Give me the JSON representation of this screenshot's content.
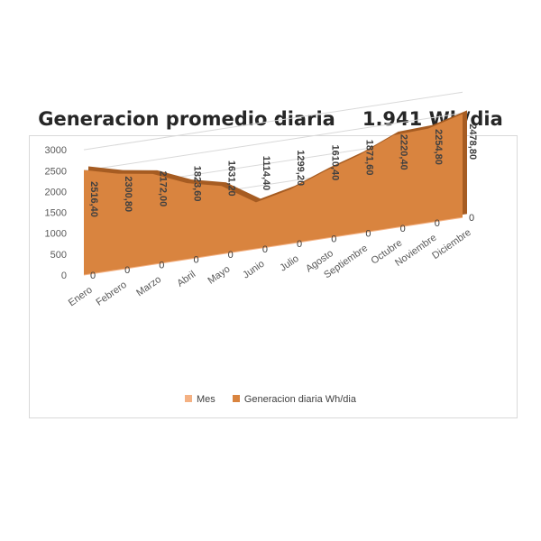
{
  "chart_data": {
    "type": "area",
    "title": "Generacion promedio diaria",
    "subtitle": "1.941 Wh/dia",
    "categories": [
      "Enero",
      "Febrero",
      "Marzo",
      "Abril",
      "Mayo",
      "Junio",
      "Julio",
      "Agosto",
      "Septiembre",
      "Octubre",
      "Noviembre",
      "Diciembre"
    ],
    "series": [
      {
        "name": "Mes",
        "values": [
          0,
          0,
          0,
          0,
          0,
          0,
          0,
          0,
          0,
          0,
          0,
          0
        ],
        "data_labels": [
          "0",
          "0",
          "0",
          "0",
          "0",
          "0",
          "0",
          "0",
          "0",
          "0",
          "0",
          "0"
        ],
        "color": "#f4b183"
      },
      {
        "name": "Generacion diaria Wh/dia",
        "values": [
          2516.4,
          2300.8,
          2172.0,
          1823.6,
          1631.2,
          1114.4,
          1299.2,
          1610.4,
          1871.6,
          2220.4,
          2254.8,
          2478.8
        ],
        "data_labels": [
          "2516,40",
          "2300,80",
          "2172,00",
          "1823,60",
          "1631,20",
          "1114,40",
          "1299,20",
          "1610,40",
          "1871,60",
          "2220,40",
          "2254,80",
          "2478,80"
        ],
        "color": "#d9843f"
      }
    ],
    "yticks": [
      "0",
      "500",
      "1000",
      "1500",
      "2000",
      "2500",
      "3000"
    ],
    "ylim": [
      0,
      3000
    ],
    "grid": true,
    "legend": "bottom",
    "style": "3d-area"
  }
}
